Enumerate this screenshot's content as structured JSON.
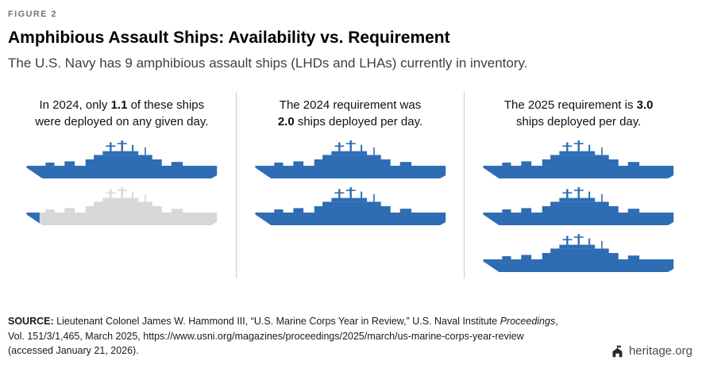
{
  "figure_label": "FIGURE 2",
  "title": "Amphibious Assault Ships: Availability vs. Requirement",
  "subtitle": "The U.S. Navy has 9 amphibious assault ships (LHDs and LHAs) currently in inventory.",
  "panels": [
    {
      "pre": "In 2024, only ",
      "value": "1.1",
      "post": " of these ships were deployed on any given day.",
      "ships": [
        1,
        0.1
      ]
    },
    {
      "pre": "The 2024 requirement was ",
      "value": "2.0",
      "post": " ships deployed per day.",
      "ships": [
        1,
        1
      ]
    },
    {
      "pre": "The 2025 requirement is ",
      "value": "3.0",
      "post": " ships deployed per day.",
      "ships": [
        1,
        1,
        1
      ]
    }
  ],
  "chart_data": {
    "type": "pictogram",
    "categories": [
      "2024 ships deployed on any given day",
      "2024 requirement (ships deployed per day)",
      "2025 requirement (ships deployed per day)"
    ],
    "values": [
      1.1,
      2.0,
      3.0
    ],
    "title": "Amphibious Assault Ships: Availability vs. Requirement",
    "subtitle": "The U.S. Navy has 9 amphibious assault ships (LHDs and LHAs) currently in inventory.",
    "unit": "ships",
    "icon": "amphibious-assault-ship",
    "inventory_total": 9,
    "legend_position": "none",
    "grid": false
  },
  "source": {
    "label": "SOURCE:",
    "line1_pre": " Lieutenant Colonel James W. Hammond III, “U.S. Marine Corps Year in Review,” U.S. Naval Institute ",
    "line1_italic": "Proceedings",
    "line1_post": ",",
    "line2": "Vol. 151/3/1,465, March 2025, https://www.usni.org/magazines/proceedings/2025/march/us-marine-corps-year-review",
    "line3": "(accessed January 21, 2026)."
  },
  "footer": {
    "brand": "heritage.org"
  },
  "icons": {
    "heritage_logo": "heritage-logo-icon",
    "ship": "ship-icon"
  },
  "colors": {
    "ship_blue": "#2e6db4",
    "ship_gray": "#d8d8d8",
    "divider": "#cccccc",
    "title_text": "#000000",
    "subtitle_text": "#3f3f3f",
    "figure_label_text": "#757575",
    "source_text": "#1a1a1a",
    "brand_text": "#4d4d4d"
  }
}
